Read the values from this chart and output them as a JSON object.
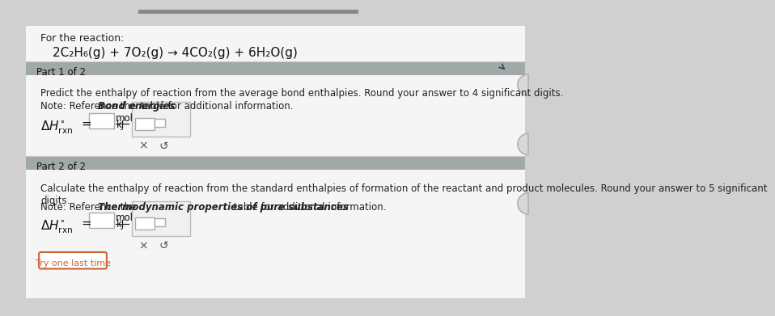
{
  "bg_color": "#d0d0d0",
  "page_bg": "#e8e8e8",
  "white_bg": "#f5f5f5",
  "header_bg": "#a0a8a8",
  "top_bar_color": "#808080",
  "reaction_text": "2C₂H₆(g) + 7O₂(g) → 4CO₂(g) + 6H₂O(g)",
  "for_the_reaction": "For the reaction:",
  "part1_header": "Part 1 of 2",
  "part1_body": "Predict the enthalpy of reaction from the average bond enthalpies. Round your answer to 4 significant digits.",
  "part1_note_pre": "Note: Reference the ",
  "part1_note_bold": "Bond energies",
  "part1_note_post": " table for additional information.",
  "part2_header": "Part 2 of 2",
  "part2_body": "Calculate the enthalpy of reaction from the standard enthalpies of formation of the reactant and product molecules. Round your answer to 5 significant\ndigits.",
  "part2_note_pre": "Note: Reference the ",
  "part2_note_bold": "Thermodynamic properties of pure substances",
  "part2_note_post": " table for additional information.",
  "button_x": "×",
  "button_undo": "↺",
  "try_last": "Try one last time",
  "box_border": "#aaaaaa",
  "try_border": "#cc6633",
  "try_text": "#cc6633",
  "scrollbar_color": "#888888"
}
